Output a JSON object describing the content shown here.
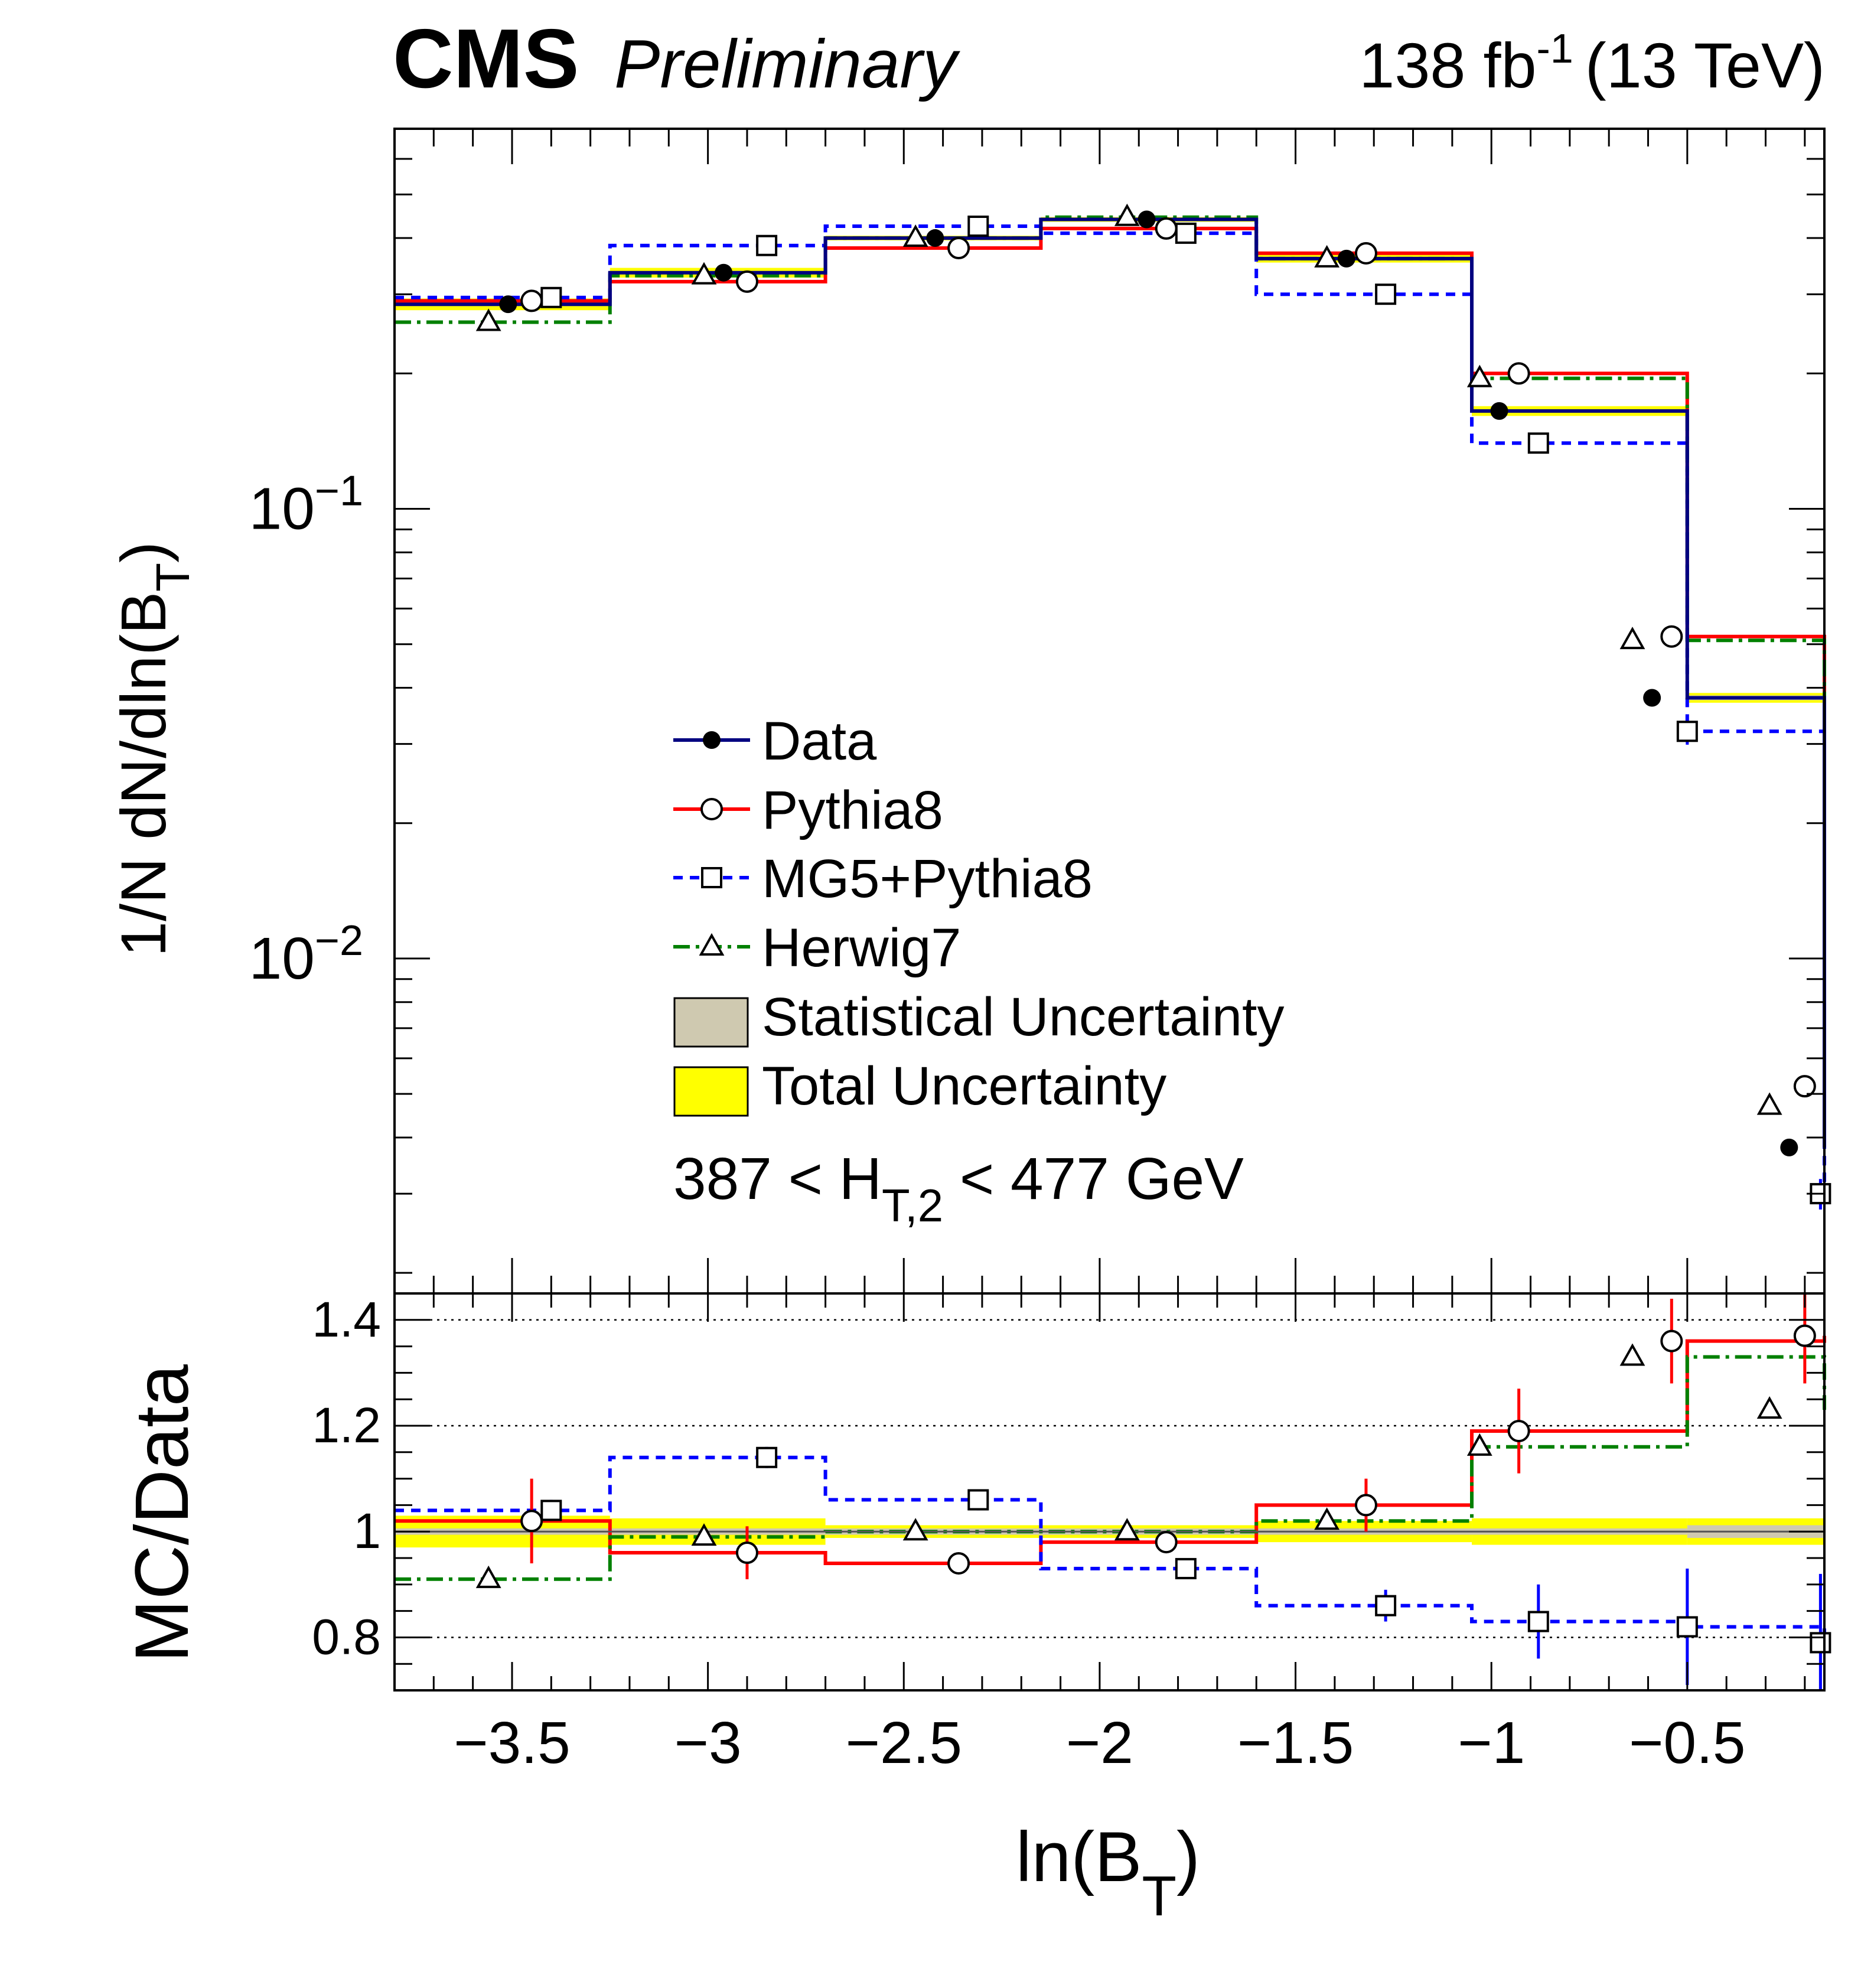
{
  "header": {
    "cms_label": "CMS",
    "prelim_label": "Preliminary",
    "lumi_value": "138 fb",
    "lumi_exponent": "-1",
    "lumi_energy": "(13 TeV)"
  },
  "chart_data": {
    "type": "line",
    "title": "",
    "x_bin_edges": [
      -3.8,
      -3.25,
      -2.7,
      -2.15,
      -1.6,
      -1.05,
      -0.5,
      -0.15
    ],
    "xlim": [
      -3.8,
      -0.15
    ],
    "xlabel_main": "ln(B",
    "xlabel_sub": "T",
    "xlabel_close": ")",
    "x_ticks": [
      -3.5,
      -3,
      -2.5,
      -2,
      -1.5,
      -1,
      -0.5
    ],
    "x_tick_labels": [
      "−3.5",
      "−3",
      "−2.5",
      "−2",
      "−1.5",
      "−1",
      "−0.5"
    ],
    "main_panel": {
      "yscale": "log",
      "ylim": [
        0.0018,
        0.7
      ],
      "ylabel_main": "1/N dN/dln(B",
      "ylabel_sub": "T",
      "ylabel_close": ")",
      "y_ticks": [
        {
          "value": 0.1,
          "base": "10",
          "exp": "−1"
        },
        {
          "value": 0.01,
          "base": "10",
          "exp": "−2"
        }
      ]
    },
    "ratio_panel": {
      "ylim": [
        0.7,
        1.45
      ],
      "ylabel": "MC/Data",
      "y_ticks": [
        {
          "value": 0.8,
          "label": "0.8"
        },
        {
          "value": 1,
          "label": "1"
        },
        {
          "value": 1.2,
          "label": "1.2"
        },
        {
          "value": 1.4,
          "label": "1.4"
        }
      ],
      "reference_lines": [
        0.8,
        1.2,
        1.4
      ]
    },
    "series": [
      {
        "name": "Data",
        "color": "#000080",
        "marker": "filled-circle",
        "marker_color": "#000000",
        "line": "solid",
        "values": [
          0.285,
          0.335,
          0.4,
          0.44,
          0.36,
          0.165,
          0.038,
          0.0038
        ],
        "marker_x": [
          -3.51,
          -2.96,
          -2.42,
          -1.88,
          -1.37,
          -0.98,
          -0.59,
          -0.24
        ],
        "ratio_values": [
          1.0,
          1.0,
          1.0,
          1.0,
          1.0,
          1.0,
          1.0,
          1.0
        ]
      },
      {
        "name": "Pythia8",
        "color": "#ff0000",
        "marker": "open-circle",
        "marker_color": "#000000",
        "line": "solid",
        "values": [
          0.29,
          0.32,
          0.38,
          0.42,
          0.37,
          0.2,
          0.052,
          0.0052
        ],
        "marker_x": [
          -3.45,
          -2.9,
          -2.36,
          -1.83,
          -1.32,
          -0.93,
          -0.54,
          -0.2
        ],
        "ratio_values": [
          1.02,
          0.96,
          0.94,
          0.98,
          1.05,
          1.19,
          1.36,
          1.37
        ],
        "ratio_err": [
          0.08,
          0.05,
          0.02,
          0.02,
          0.05,
          0.08,
          0.08,
          0.09
        ]
      },
      {
        "name": "MG5+Pythia8",
        "color": "#0000ff",
        "marker": "open-square",
        "marker_color": "#000000",
        "line": "dashed",
        "values": [
          0.295,
          0.385,
          0.425,
          0.41,
          0.3,
          0.14,
          0.032,
          0.003
        ],
        "marker_x": [
          -3.4,
          -2.85,
          -2.31,
          -1.78,
          -1.27,
          -0.88,
          -0.5,
          -0.16
        ],
        "ratio_values": [
          1.04,
          1.14,
          1.06,
          0.93,
          0.86,
          0.83,
          0.82,
          0.79
        ],
        "ratio_err": [
          0.02,
          0.02,
          0.02,
          0.01,
          0.03,
          0.07,
          0.11,
          0.13
        ]
      },
      {
        "name": "Herwig7",
        "color": "#008000",
        "marker": "open-triangle",
        "marker_color": "#000000",
        "line": "dash-dot",
        "values": [
          0.26,
          0.33,
          0.4,
          0.445,
          0.36,
          0.195,
          0.051,
          0.0047
        ],
        "marker_x": [
          -3.56,
          -3.01,
          -2.47,
          -1.93,
          -1.42,
          -1.03,
          -0.64,
          -0.29
        ],
        "ratio_values": [
          0.91,
          0.99,
          1.0,
          1.0,
          1.02,
          1.16,
          1.33,
          1.23
        ],
        "ratio_err": [
          0.0,
          0.0,
          0.0,
          0.0,
          0.0,
          0.0,
          0.0,
          0.0
        ]
      }
    ],
    "uncertainty_bands": [
      {
        "name": "Statistical Uncertainty",
        "color": "#cfc9b0",
        "ratio_half_width": [
          0.006,
          0.006,
          0.006,
          0.006,
          0.006,
          0.006,
          0.012,
          0.045
        ]
      },
      {
        "name": "Total Uncertainty",
        "color": "#ffff00",
        "ratio_half_width": [
          0.03,
          0.025,
          0.012,
          0.012,
          0.02,
          0.025,
          0.025,
          0.08
        ]
      }
    ],
    "legend": {
      "position": "center",
      "entries": [
        {
          "label": "Data"
        },
        {
          "label": "Pythia8"
        },
        {
          "label": "MG5+Pythia8"
        },
        {
          "label": "Herwig7"
        },
        {
          "label": "Statistical Uncertainty"
        },
        {
          "label": "Total Uncertainty"
        }
      ]
    },
    "annotation": {
      "range_prefix": "387 < H",
      "range_sub": "T,2",
      "range_suffix": " < 477 GeV"
    }
  }
}
